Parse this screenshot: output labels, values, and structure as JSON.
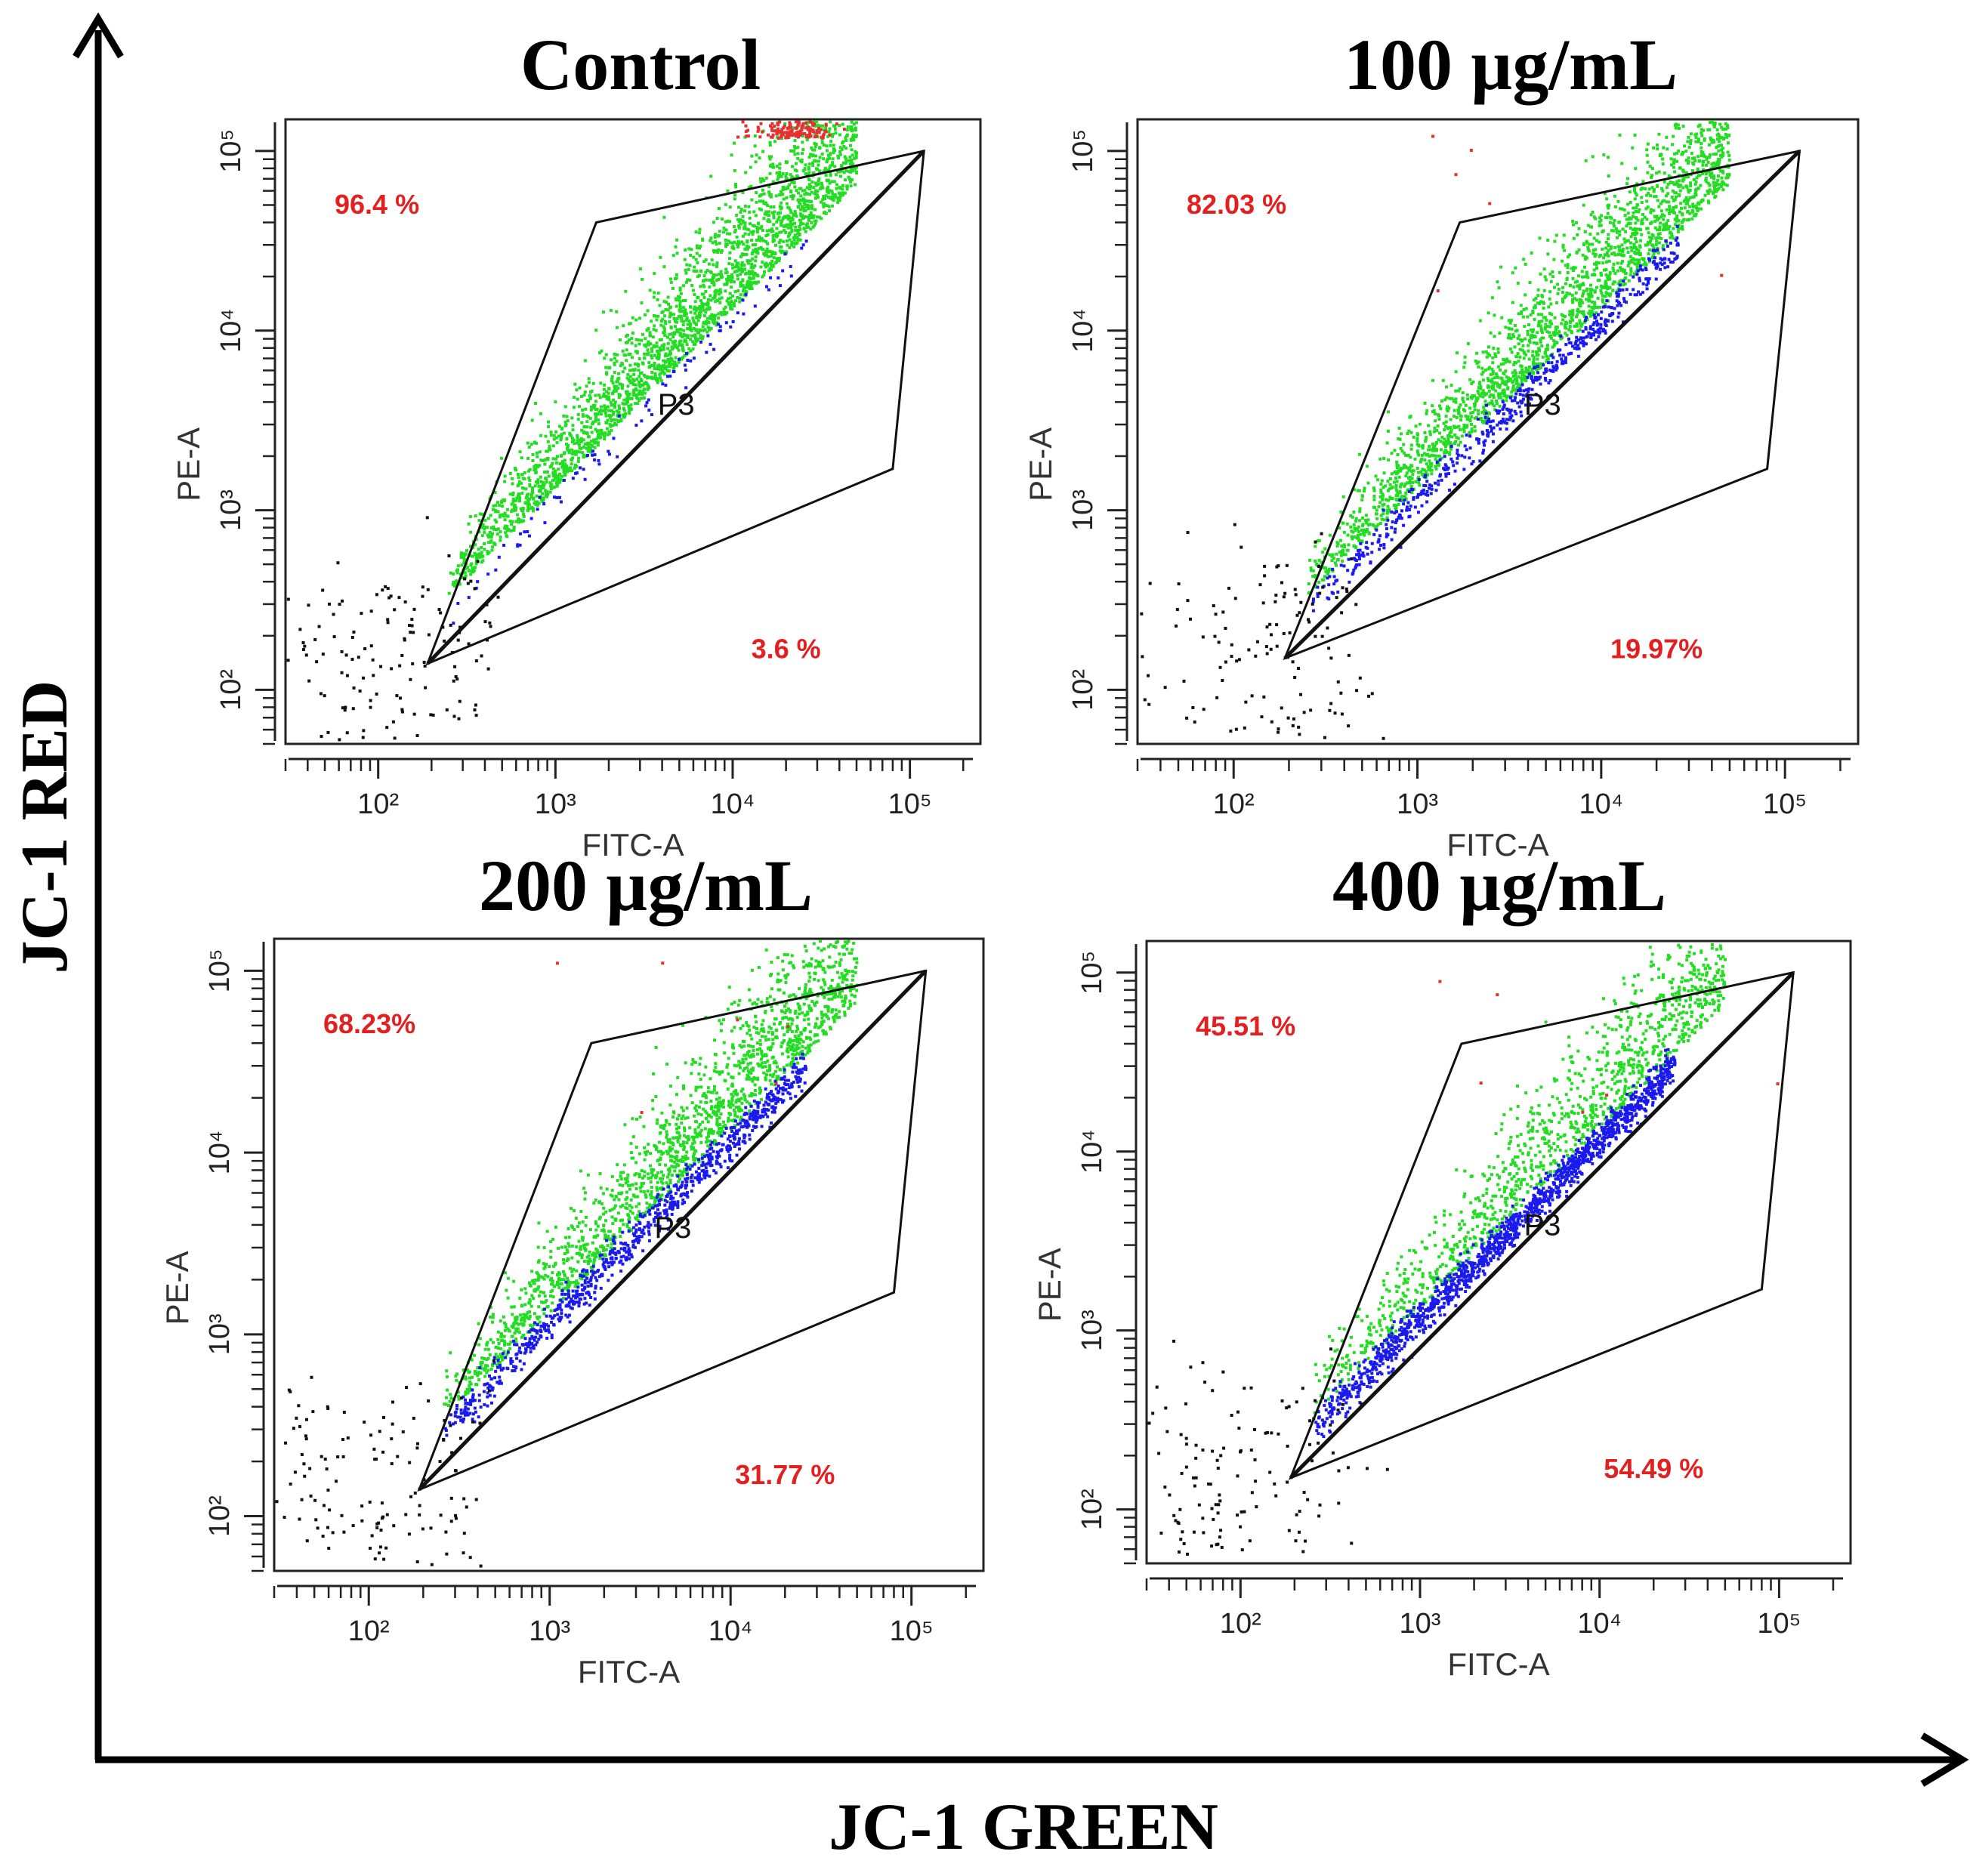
{
  "figure": {
    "y_axis_title": "JC-1 RED",
    "x_axis_title": "JC-1 GREEN",
    "colors": {
      "high_mmp": "#22dd22",
      "low_mmp": "#1a1aee",
      "outside_gate": "#111111",
      "offscale_red": "#e53030",
      "percent_text": "#e32020"
    }
  },
  "chart_data": [
    {
      "type": "scatter",
      "title": "Control",
      "xlabel": "FITC-A",
      "ylabel": "PE-A",
      "xscale": "log",
      "yscale": "log",
      "xlim": [
        30,
        250000
      ],
      "ylim": [
        50,
        150000
      ],
      "xticks": [
        100,
        1000,
        10000,
        100000
      ],
      "yticks": [
        100,
        1000,
        10000,
        100000
      ],
      "xtick_labels": [
        "10²",
        "10³",
        "10⁴",
        "10⁵"
      ],
      "ytick_labels": [
        "10²",
        "10³",
        "10⁴",
        "10⁵"
      ],
      "gate_name": "P3",
      "gate_polygon": [
        [
          190,
          140
        ],
        [
          1700,
          40000
        ],
        [
          120000,
          100000
        ],
        [
          80000,
          1700
        ]
      ],
      "red_pct_label": "96.4 %",
      "green_pct_label": "3.6 %",
      "red_pct": 96.4,
      "green_pct": 3.6,
      "offscale_cluster": true
    },
    {
      "type": "scatter",
      "title": "100 µg/mL",
      "xlabel": "FITC-A",
      "ylabel": "PE-A",
      "xscale": "log",
      "yscale": "log",
      "xlim": [
        30,
        250000
      ],
      "ylim": [
        50,
        150000
      ],
      "xticks": [
        100,
        1000,
        10000,
        100000
      ],
      "yticks": [
        100,
        1000,
        10000,
        100000
      ],
      "xtick_labels": [
        "10²",
        "10³",
        "10⁴",
        "10⁵"
      ],
      "ytick_labels": [
        "10²",
        "10³",
        "10⁴",
        "10⁵"
      ],
      "gate_name": "P3",
      "gate_polygon": [
        [
          190,
          150
        ],
        [
          1700,
          40000
        ],
        [
          120000,
          100000
        ],
        [
          80000,
          1700
        ]
      ],
      "red_pct_label": "82.03 %",
      "green_pct_label": "19.97%",
      "red_pct": 82.03,
      "green_pct": 19.97,
      "offscale_cluster": false
    },
    {
      "type": "scatter",
      "title": "200 µg/mL",
      "xlabel": "FITC-A",
      "ylabel": "PE-A",
      "xscale": "log",
      "yscale": "log",
      "xlim": [
        30,
        250000
      ],
      "ylim": [
        50,
        150000
      ],
      "xticks": [
        100,
        1000,
        10000,
        100000
      ],
      "yticks": [
        100,
        1000,
        10000,
        100000
      ],
      "xtick_labels": [
        "10²",
        "10³",
        "10⁴",
        "10⁵"
      ],
      "ytick_labels": [
        "10²",
        "10³",
        "10⁴",
        "10⁵"
      ],
      "gate_name": "P3",
      "gate_polygon": [
        [
          190,
          140
        ],
        [
          1700,
          40000
        ],
        [
          120000,
          100000
        ],
        [
          80000,
          1700
        ]
      ],
      "red_pct_label": "68.23%",
      "green_pct_label": "31.77 %",
      "red_pct": 68.23,
      "green_pct": 31.77,
      "offscale_cluster": false
    },
    {
      "type": "scatter",
      "title": "400 µg/mL",
      "xlabel": "FITC-A",
      "ylabel": "PE-A",
      "xscale": "log",
      "yscale": "log",
      "xlim": [
        30,
        250000
      ],
      "ylim": [
        50,
        150000
      ],
      "xticks": [
        100,
        1000,
        10000,
        100000
      ],
      "yticks": [
        100,
        1000,
        10000,
        100000
      ],
      "xtick_labels": [
        "10²",
        "10³",
        "10⁴",
        "10⁵"
      ],
      "ytick_labels": [
        "10²",
        "10³",
        "10⁴",
        "10⁵"
      ],
      "gate_name": "P3",
      "gate_polygon": [
        [
          190,
          150
        ],
        [
          1700,
          40000
        ],
        [
          120000,
          100000
        ],
        [
          80000,
          1700
        ]
      ],
      "red_pct_label": "45.51 %",
      "green_pct_label": "54.49 %",
      "red_pct": 45.51,
      "green_pct": 54.49,
      "offscale_cluster": false
    }
  ]
}
